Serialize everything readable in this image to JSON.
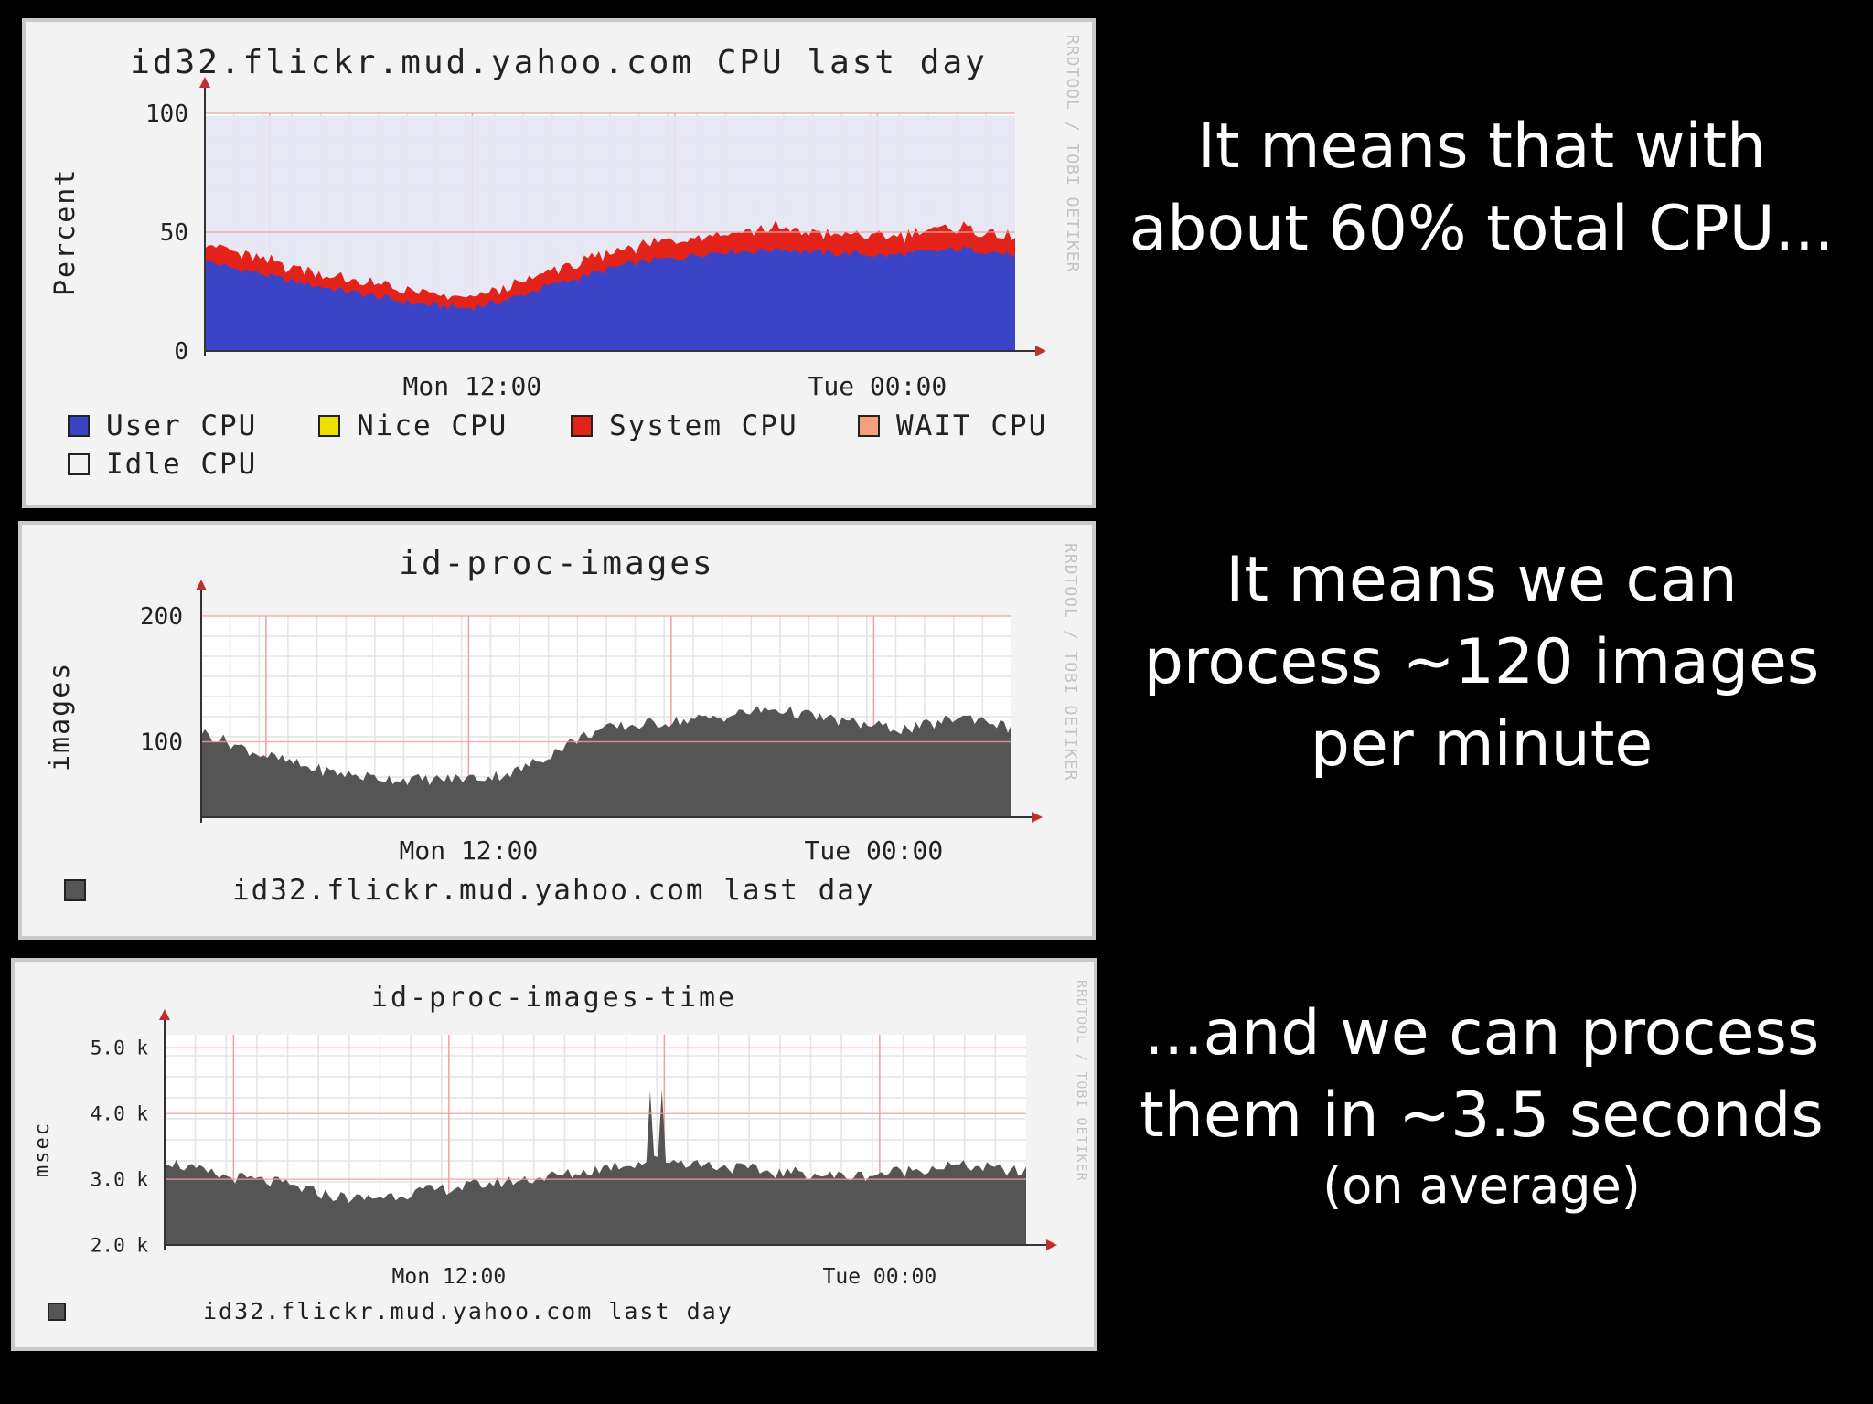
{
  "chart_data": [
    {
      "type": "area",
      "title": "id32.flickr.mud.yahoo.com CPU last day",
      "ylabel": "Percent",
      "ylim": [
        0,
        100
      ],
      "yticks": [
        "100",
        "50",
        "0"
      ],
      "xticks": [
        "Mon 12:00",
        "Tue 00:00"
      ],
      "watermark": "RRDTOOL / TOBI OETIKER",
      "stacked": true,
      "legend": [
        {
          "name": "User CPU",
          "color": "#3b44c6"
        },
        {
          "name": "Nice CPU",
          "color": "#f0e000"
        },
        {
          "name": "System CPU",
          "color": "#e3231a"
        },
        {
          "name": "WAIT CPU",
          "color": "#f4a07a"
        },
        {
          "name": "Idle CPU",
          "color": "#f3f3f3"
        }
      ],
      "series": [
        {
          "name": "User CPU",
          "values": [
            38,
            35,
            33,
            30,
            28,
            26,
            24,
            22,
            20,
            19,
            18,
            20,
            23,
            27,
            30,
            33,
            36,
            38,
            39,
            41,
            42,
            42,
            43,
            42,
            41,
            41,
            40,
            41,
            42,
            43,
            42,
            40
          ]
        },
        {
          "name": "System CPU",
          "values": [
            8,
            7,
            6,
            6,
            6,
            5,
            5,
            5,
            5,
            4,
            4,
            5,
            5,
            6,
            6,
            6,
            7,
            7,
            8,
            8,
            8,
            9,
            9,
            8,
            8,
            8,
            8,
            8,
            9,
            9,
            8,
            7
          ]
        }
      ]
    },
    {
      "type": "area",
      "title": "id-proc-images",
      "ylabel": "images",
      "ylim": [
        40,
        200
      ],
      "yticks": [
        "200",
        "100"
      ],
      "xticks": [
        "Mon 12:00",
        "Tue 00:00"
      ],
      "watermark": "RRDTOOL / TOBI OETIKER",
      "legend": [
        {
          "name": "id32.flickr.mud.yahoo.com last day",
          "color": "#555555"
        }
      ],
      "series": [
        {
          "name": "id32.flickr.mud.yahoo.com last day",
          "values": [
            108,
            100,
            92,
            86,
            80,
            76,
            73,
            71,
            70,
            70,
            71,
            72,
            76,
            86,
            98,
            108,
            112,
            114,
            116,
            118,
            120,
            124,
            126,
            122,
            118,
            115,
            112,
            110,
            114,
            120,
            118,
            110
          ]
        }
      ]
    },
    {
      "type": "area",
      "title": "id-proc-images-time",
      "ylabel": "msec",
      "ylim": [
        2000,
        5200
      ],
      "yticks": [
        "5.0 k",
        "4.0 k",
        "3.0 k",
        "2.0 k"
      ],
      "xticks": [
        "Mon 12:00",
        "Tue 00:00"
      ],
      "watermark": "RRDTOOL / TOBI OETIKER",
      "legend": [
        {
          "name": "id32.flickr.mud.yahoo.com last day",
          "color": "#555555"
        }
      ],
      "series": [
        {
          "name": "id32.flickr.mud.yahoo.com last day",
          "values": [
            3300,
            3150,
            3050,
            3000,
            2950,
            2850,
            2750,
            2700,
            2750,
            2800,
            2850,
            2900,
            2950,
            3000,
            3050,
            3100,
            3200,
            3250,
            3300,
            3250,
            3200,
            3150,
            3100,
            3100,
            3050,
            3050,
            3100,
            3150,
            3200,
            3200,
            3150,
            3100
          ]
        }
      ]
    }
  ],
  "captions": {
    "c1": "It means that with about 60% total CPU...",
    "c2": "It means we can process ~120 images per minute",
    "c3_main": "...and we can process them in ~3.5 seconds",
    "c3_sub": "(on average)"
  }
}
